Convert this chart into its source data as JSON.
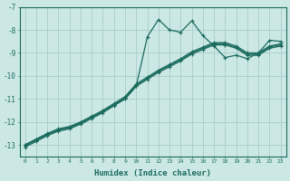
{
  "xlabel": "Humidex (Indice chaleur)",
  "xlim": [
    -0.5,
    23.5
  ],
  "ylim": [
    -13.5,
    -7.0
  ],
  "yticks": [
    -13,
    -12,
    -11,
    -10,
    -9,
    -8,
    -7
  ],
  "xticks": [
    0,
    1,
    2,
    3,
    4,
    5,
    6,
    7,
    8,
    9,
    10,
    11,
    12,
    13,
    14,
    15,
    16,
    17,
    18,
    19,
    20,
    21,
    22,
    23
  ],
  "bg_color": "#cce8e4",
  "grid_color": "#a8ccca",
  "line_color": "#1a6b5e",
  "line1_x": [
    0,
    1,
    2,
    3,
    4,
    5,
    6,
    7,
    8,
    9,
    10,
    11,
    12,
    13,
    14,
    15,
    16,
    17,
    18,
    19,
    20,
    21,
    22,
    23
  ],
  "line1_y": [
    -13.0,
    -12.75,
    -12.55,
    -12.35,
    -12.25,
    -12.05,
    -11.8,
    -11.55,
    -11.25,
    -11.0,
    -10.45,
    -8.3,
    -7.55,
    -8.0,
    -8.1,
    -7.6,
    -8.25,
    -8.7,
    -9.2,
    -9.1,
    -9.25,
    -9.0,
    -8.45,
    -8.5
  ],
  "line2_x": [
    0,
    1,
    2,
    3,
    4,
    5,
    6,
    7,
    8,
    9,
    10,
    11,
    12,
    13,
    14,
    15,
    16,
    17,
    18,
    19,
    20,
    21,
    22,
    23
  ],
  "line2_y": [
    -13.0,
    -12.75,
    -12.5,
    -12.3,
    -12.2,
    -12.0,
    -11.75,
    -11.5,
    -11.2,
    -10.9,
    -10.35,
    -10.05,
    -9.75,
    -9.5,
    -9.25,
    -8.95,
    -8.75,
    -8.55,
    -8.55,
    -8.7,
    -9.0,
    -9.0,
    -8.7,
    -8.6
  ],
  "line3_x": [
    0,
    1,
    2,
    3,
    4,
    5,
    6,
    7,
    8,
    9,
    10,
    11,
    12,
    13,
    14,
    15,
    16,
    17,
    18,
    19,
    20,
    21,
    22,
    23
  ],
  "line3_y": [
    -13.05,
    -12.8,
    -12.55,
    -12.35,
    -12.25,
    -12.05,
    -11.8,
    -11.55,
    -11.25,
    -10.95,
    -10.4,
    -10.1,
    -9.8,
    -9.55,
    -9.3,
    -9.0,
    -8.8,
    -8.6,
    -8.6,
    -8.75,
    -9.05,
    -9.05,
    -8.75,
    -8.65
  ],
  "line4_x": [
    0,
    1,
    2,
    3,
    4,
    5,
    6,
    7,
    8,
    9,
    10,
    11,
    12,
    13,
    14,
    15,
    16,
    17,
    18,
    19,
    20,
    21,
    22,
    23
  ],
  "line4_y": [
    -13.1,
    -12.85,
    -12.6,
    -12.4,
    -12.3,
    -12.1,
    -11.85,
    -11.6,
    -11.3,
    -11.0,
    -10.45,
    -10.15,
    -9.85,
    -9.6,
    -9.35,
    -9.05,
    -8.85,
    -8.65,
    -8.65,
    -8.8,
    -9.1,
    -9.1,
    -8.8,
    -8.7
  ]
}
